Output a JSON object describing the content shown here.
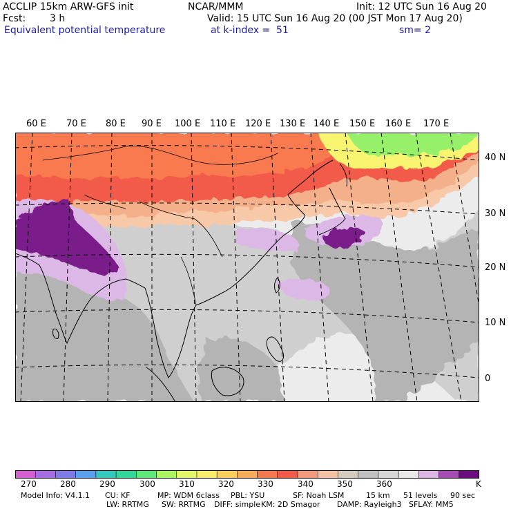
{
  "header": {
    "model_title": "ACCLIP 15km ARW-GFS init",
    "org": "NCAR/MMM",
    "init": "Init: 12 UTC Sun 16 Aug 20",
    "fcst_label": "Fcst:",
    "fcst_value": "3 h",
    "valid": "Valid: 15 UTC Sun 16 Aug 20 (00 JST Mon 17 Aug 20)",
    "field": "Equivalent potential temperature",
    "level": "at k-index =  51",
    "smoothing": "sm= 2"
  },
  "map": {
    "lon_labels": [
      "60 E",
      "70 E",
      "80 E",
      "90 E",
      "100 E",
      "110 E",
      "120 E",
      "130 E",
      "140 E",
      "150 E",
      "160 E",
      "170 E"
    ],
    "lat_labels": [
      "40 N",
      "30 N",
      "20 N",
      "10 N",
      "0"
    ],
    "colors": {
      "purple_dark": "#7a1e8a",
      "purple_light": "#dcb8e6",
      "red": "#f25a4a",
      "orange_red": "#f97a50",
      "salmon": "#f3b08a",
      "peach": "#f8c9a8",
      "gray_dark": "#b4b4b4",
      "gray_mid": "#cfcfcf",
      "gray_light": "#ececec",
      "green": "#96f06a",
      "yellow": "#f8f470"
    }
  },
  "colorbar": {
    "colors": [
      "#d35fd2",
      "#a66ce6",
      "#7d7be8",
      "#5ba0ee",
      "#35c8be",
      "#33d79a",
      "#5ee87c",
      "#a8f560",
      "#e4f56a",
      "#f8ec6a",
      "#f9d05c",
      "#f8ac5a",
      "#f47a4e",
      "#f25a4a",
      "#f39a7e",
      "#f3c2a4",
      "#d6cbbf",
      "#c0c0c0",
      "#d8d8d8",
      "#e8e8e8",
      "#ddb4e6",
      "#a44ab0",
      "#6c0a7e"
    ],
    "labels": [
      "270",
      "280",
      "290",
      "300",
      "310",
      "320",
      "330",
      "340",
      "350",
      "360",
      "K"
    ]
  },
  "footer": {
    "line1": [
      "Model Info: V4.1.1",
      "CU: KF",
      "MP: WDM 6class",
      "PBL: YSU",
      "SF: Noah LSM",
      "15 km",
      "51 levels",
      "90 sec"
    ],
    "line2": [
      "LW: RRTMG",
      "SW: RRTMG",
      "DIFF: simple",
      "KM: 2D Smagor",
      "DAMP: Rayleigh3",
      "SFLAY: MM5"
    ]
  }
}
